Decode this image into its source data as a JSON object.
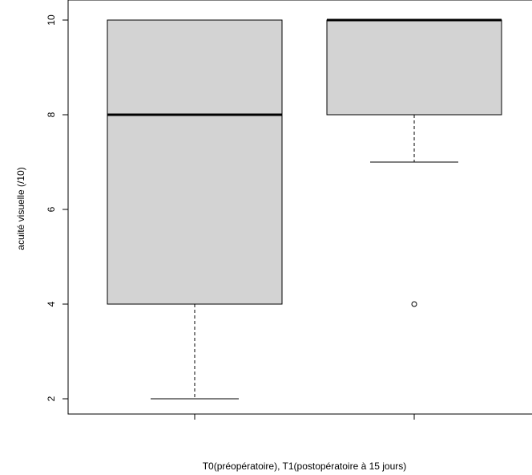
{
  "chart_data": {
    "type": "boxplot",
    "title": "",
    "xlabel": "T0(préopératoire), T1(postopératoire à 15 jours)",
    "ylabel": "acuité visuelle (/10)",
    "ylim": [
      2,
      10
    ],
    "yticks": [
      2,
      4,
      6,
      8,
      10
    ],
    "categories": [
      "",
      ""
    ],
    "boxes": [
      {
        "whisker_low": 2,
        "q1": 4,
        "median": 8,
        "q3": 10,
        "whisker_high": 10,
        "outliers": []
      },
      {
        "whisker_low": 7,
        "q1": 8,
        "median": 10,
        "q3": 10,
        "whisker_high": 10,
        "outliers": [
          4
        ]
      }
    ],
    "box_fill": "#d3d3d3",
    "grid": false
  }
}
